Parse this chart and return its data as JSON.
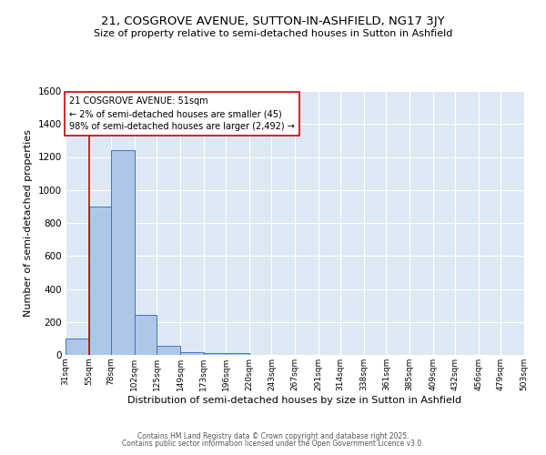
{
  "title": "21, COSGROVE AVENUE, SUTTON-IN-ASHFIELD, NG17 3JY",
  "subtitle": "Size of property relative to semi-detached houses in Sutton in Ashfield",
  "xlabel": "Distribution of semi-detached houses by size in Sutton in Ashfield",
  "ylabel": "Number of semi-detached properties",
  "footer_line1": "Contains HM Land Registry data © Crown copyright and database right 2025.",
  "footer_line2": "Contains public sector information licensed under the Open Government Licence v3.0.",
  "bins": [
    31,
    55,
    78,
    102,
    125,
    149,
    173,
    196,
    220,
    243,
    267,
    291,
    314,
    338,
    361,
    385,
    409,
    432,
    456,
    479,
    503
  ],
  "counts": [
    100,
    900,
    1240,
    245,
    55,
    15,
    12,
    10,
    0,
    0,
    0,
    0,
    0,
    0,
    0,
    0,
    0,
    0,
    0,
    0
  ],
  "bar_color": "#aec6e8",
  "bar_edge_color": "#4472c4",
  "annotation_text": "21 COSGROVE AVENUE: 51sqm\n← 2% of semi-detached houses are smaller (45)\n98% of semi-detached houses are larger (2,492) →",
  "annotation_box_color": "#ffffff",
  "annotation_box_edge": "#cc0000",
  "red_line_x": 55,
  "ylim": [
    0,
    1600
  ],
  "yticks": [
    0,
    200,
    400,
    600,
    800,
    1000,
    1200,
    1400,
    1600
  ],
  "background_color": "#dde8f5",
  "grid_color": "#ffffff",
  "tick_labels": [
    "31sqm",
    "55sqm",
    "78sqm",
    "102sqm",
    "125sqm",
    "149sqm",
    "173sqm",
    "196sqm",
    "220sqm",
    "243sqm",
    "267sqm",
    "291sqm",
    "314sqm",
    "338sqm",
    "361sqm",
    "385sqm",
    "409sqm",
    "432sqm",
    "456sqm",
    "479sqm",
    "503sqm"
  ]
}
